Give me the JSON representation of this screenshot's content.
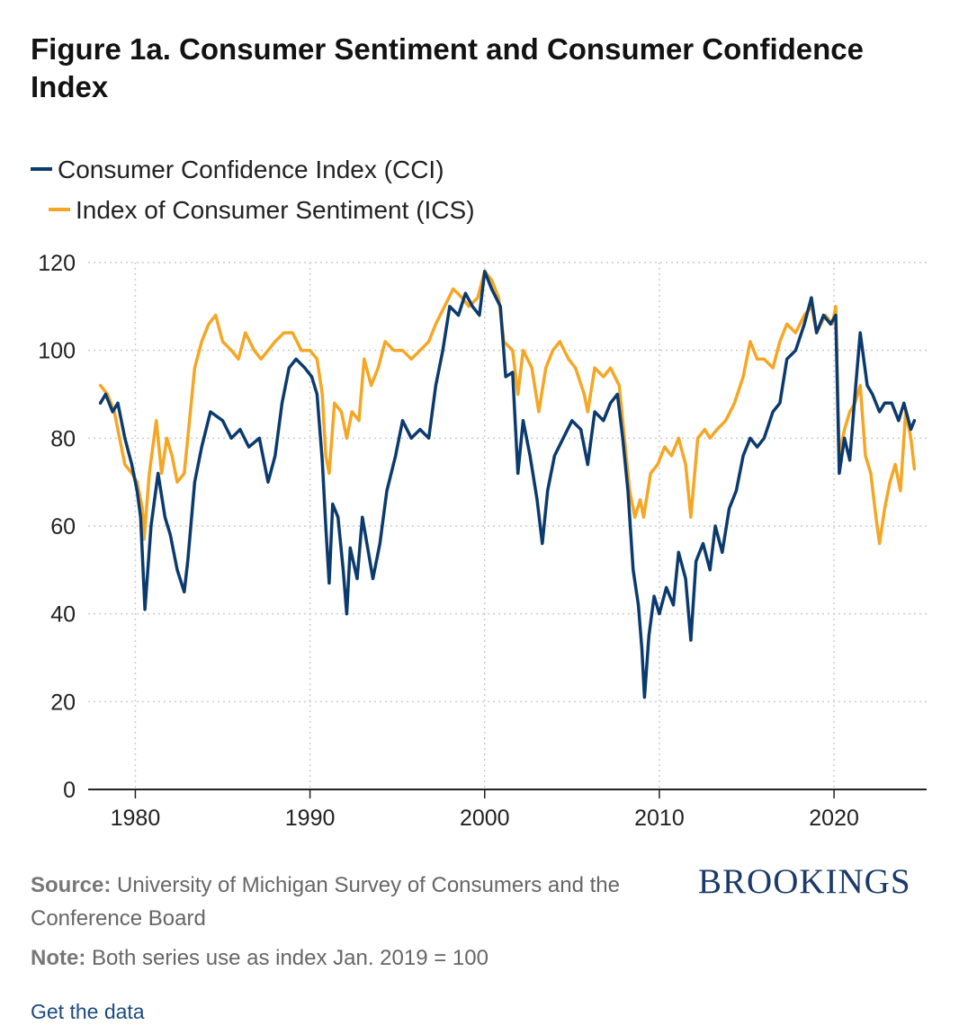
{
  "header": {
    "title": "Figure 1a. Consumer Sentiment and Consumer Confidence Index"
  },
  "colors": {
    "cci": "#0b3a6e",
    "ics": "#f5a623",
    "grid": "#cccccc",
    "axis": "#222222",
    "brand": "#1b3a6b"
  },
  "chart_data": {
    "type": "line",
    "title": "Figure 1a. Consumer Sentiment and Consumer Confidence Index",
    "xlabel": "",
    "ylabel": "",
    "xlim": [
      1977.3,
      2025.3
    ],
    "ylim": [
      0,
      120
    ],
    "x_ticks": [
      1980,
      1990,
      2000,
      2010,
      2020
    ],
    "y_ticks": [
      0,
      20,
      40,
      60,
      80,
      100,
      120
    ],
    "grid": true,
    "legend_position": "top",
    "series": [
      {
        "name": "Consumer Confidence Index (CCI)",
        "key": "cci",
        "points": [
          [
            1978.0,
            88
          ],
          [
            1978.3,
            90
          ],
          [
            1978.7,
            86
          ],
          [
            1979.0,
            88
          ],
          [
            1979.4,
            80
          ],
          [
            1979.8,
            74
          ],
          [
            1980.1,
            68
          ],
          [
            1980.3,
            62
          ],
          [
            1980.55,
            41
          ],
          [
            1980.9,
            60
          ],
          [
            1981.3,
            72
          ],
          [
            1981.7,
            62
          ],
          [
            1982.0,
            58
          ],
          [
            1982.4,
            50
          ],
          [
            1982.8,
            45
          ],
          [
            1983.0,
            52
          ],
          [
            1983.4,
            70
          ],
          [
            1983.8,
            78
          ],
          [
            1984.3,
            86
          ],
          [
            1985.0,
            84
          ],
          [
            1985.5,
            80
          ],
          [
            1986.0,
            82
          ],
          [
            1986.5,
            78
          ],
          [
            1987.1,
            80
          ],
          [
            1987.6,
            70
          ],
          [
            1988.0,
            76
          ],
          [
            1988.4,
            88
          ],
          [
            1988.8,
            96
          ],
          [
            1989.2,
            98
          ],
          [
            1989.7,
            96
          ],
          [
            1990.1,
            94
          ],
          [
            1990.4,
            90
          ],
          [
            1990.7,
            75
          ],
          [
            1990.9,
            60
          ],
          [
            1991.1,
            47
          ],
          [
            1991.3,
            65
          ],
          [
            1991.6,
            62
          ],
          [
            1991.9,
            50
          ],
          [
            1992.1,
            40
          ],
          [
            1992.3,
            55
          ],
          [
            1992.7,
            48
          ],
          [
            1993.0,
            62
          ],
          [
            1993.3,
            55
          ],
          [
            1993.6,
            48
          ],
          [
            1994.0,
            56
          ],
          [
            1994.4,
            68
          ],
          [
            1994.9,
            76
          ],
          [
            1995.3,
            84
          ],
          [
            1995.8,
            80
          ],
          [
            1996.3,
            82
          ],
          [
            1996.8,
            80
          ],
          [
            1997.2,
            92
          ],
          [
            1997.6,
            100
          ],
          [
            1998.0,
            110
          ],
          [
            1998.5,
            108
          ],
          [
            1998.9,
            113
          ],
          [
            1999.3,
            110
          ],
          [
            1999.7,
            108
          ],
          [
            2000.0,
            118
          ],
          [
            2000.4,
            114
          ],
          [
            2000.9,
            110
          ],
          [
            2001.2,
            94
          ],
          [
            2001.6,
            95
          ],
          [
            2001.9,
            72
          ],
          [
            2002.2,
            84
          ],
          [
            2002.6,
            76
          ],
          [
            2003.0,
            66
          ],
          [
            2003.3,
            56
          ],
          [
            2003.6,
            68
          ],
          [
            2004.0,
            76
          ],
          [
            2004.5,
            80
          ],
          [
            2005.0,
            84
          ],
          [
            2005.5,
            82
          ],
          [
            2005.9,
            74
          ],
          [
            2006.3,
            86
          ],
          [
            2006.8,
            84
          ],
          [
            2007.2,
            88
          ],
          [
            2007.6,
            90
          ],
          [
            2007.9,
            80
          ],
          [
            2008.2,
            68
          ],
          [
            2008.5,
            50
          ],
          [
            2008.8,
            42
          ],
          [
            2009.0,
            32
          ],
          [
            2009.15,
            21
          ],
          [
            2009.4,
            35
          ],
          [
            2009.7,
            44
          ],
          [
            2010.0,
            40
          ],
          [
            2010.4,
            46
          ],
          [
            2010.8,
            42
          ],
          [
            2011.1,
            54
          ],
          [
            2011.5,
            48
          ],
          [
            2011.8,
            34
          ],
          [
            2012.1,
            52
          ],
          [
            2012.5,
            56
          ],
          [
            2012.9,
            50
          ],
          [
            2013.2,
            60
          ],
          [
            2013.6,
            54
          ],
          [
            2014.0,
            64
          ],
          [
            2014.4,
            68
          ],
          [
            2014.8,
            76
          ],
          [
            2015.2,
            80
          ],
          [
            2015.6,
            78
          ],
          [
            2016.0,
            80
          ],
          [
            2016.5,
            86
          ],
          [
            2016.9,
            88
          ],
          [
            2017.3,
            98
          ],
          [
            2017.8,
            100
          ],
          [
            2018.3,
            106
          ],
          [
            2018.7,
            112
          ],
          [
            2019.0,
            104
          ],
          [
            2019.4,
            108
          ],
          [
            2019.8,
            106
          ],
          [
            2020.1,
            108
          ],
          [
            2020.3,
            72
          ],
          [
            2020.6,
            80
          ],
          [
            2020.9,
            75
          ],
          [
            2021.2,
            90
          ],
          [
            2021.5,
            104
          ],
          [
            2021.9,
            92
          ],
          [
            2022.2,
            90
          ],
          [
            2022.6,
            86
          ],
          [
            2022.9,
            88
          ],
          [
            2023.3,
            88
          ],
          [
            2023.7,
            84
          ],
          [
            2024.0,
            88
          ],
          [
            2024.4,
            82
          ],
          [
            2024.6,
            84
          ]
        ]
      },
      {
        "name": "Index of Consumer Sentiment (ICS)",
        "key": "ics",
        "points": [
          [
            1978.0,
            92
          ],
          [
            1978.4,
            90
          ],
          [
            1978.8,
            86
          ],
          [
            1979.1,
            80
          ],
          [
            1979.4,
            74
          ],
          [
            1979.8,
            72
          ],
          [
            1980.1,
            70
          ],
          [
            1980.4,
            64
          ],
          [
            1980.5,
            57
          ],
          [
            1980.8,
            72
          ],
          [
            1981.2,
            84
          ],
          [
            1981.5,
            72
          ],
          [
            1981.8,
            80
          ],
          [
            1982.1,
            76
          ],
          [
            1982.4,
            70
          ],
          [
            1982.8,
            72
          ],
          [
            1983.0,
            80
          ],
          [
            1983.4,
            96
          ],
          [
            1983.8,
            102
          ],
          [
            1984.2,
            106
          ],
          [
            1984.6,
            108
          ],
          [
            1985.0,
            102
          ],
          [
            1985.5,
            100
          ],
          [
            1985.9,
            98
          ],
          [
            1986.3,
            104
          ],
          [
            1986.8,
            100
          ],
          [
            1987.2,
            98
          ],
          [
            1987.6,
            100
          ],
          [
            1988.0,
            102
          ],
          [
            1988.5,
            104
          ],
          [
            1989.0,
            104
          ],
          [
            1989.5,
            100
          ],
          [
            1990.0,
            100
          ],
          [
            1990.4,
            98
          ],
          [
            1990.7,
            90
          ],
          [
            1990.9,
            76
          ],
          [
            1991.1,
            72
          ],
          [
            1991.4,
            88
          ],
          [
            1991.8,
            86
          ],
          [
            1992.1,
            80
          ],
          [
            1992.4,
            86
          ],
          [
            1992.8,
            84
          ],
          [
            1993.1,
            98
          ],
          [
            1993.5,
            92
          ],
          [
            1993.9,
            96
          ],
          [
            1994.3,
            102
          ],
          [
            1994.8,
            100
          ],
          [
            1995.3,
            100
          ],
          [
            1995.8,
            98
          ],
          [
            1996.3,
            100
          ],
          [
            1996.8,
            102
          ],
          [
            1997.2,
            106
          ],
          [
            1997.7,
            110
          ],
          [
            1998.2,
            114
          ],
          [
            1998.7,
            112
          ],
          [
            1999.1,
            110
          ],
          [
            1999.6,
            112
          ],
          [
            2000.0,
            118
          ],
          [
            2000.4,
            116
          ],
          [
            2000.8,
            112
          ],
          [
            2001.1,
            102
          ],
          [
            2001.6,
            100
          ],
          [
            2001.9,
            90
          ],
          [
            2002.2,
            100
          ],
          [
            2002.7,
            96
          ],
          [
            2003.1,
            86
          ],
          [
            2003.5,
            96
          ],
          [
            2003.9,
            100
          ],
          [
            2004.3,
            102
          ],
          [
            2004.8,
            98
          ],
          [
            2005.2,
            96
          ],
          [
            2005.7,
            90
          ],
          [
            2005.9,
            86
          ],
          [
            2006.3,
            96
          ],
          [
            2006.8,
            94
          ],
          [
            2007.2,
            96
          ],
          [
            2007.7,
            92
          ],
          [
            2008.0,
            80
          ],
          [
            2008.3,
            68
          ],
          [
            2008.6,
            62
          ],
          [
            2008.9,
            66
          ],
          [
            2009.1,
            62
          ],
          [
            2009.5,
            72
          ],
          [
            2009.9,
            74
          ],
          [
            2010.3,
            78
          ],
          [
            2010.7,
            76
          ],
          [
            2011.1,
            80
          ],
          [
            2011.5,
            74
          ],
          [
            2011.8,
            62
          ],
          [
            2012.2,
            80
          ],
          [
            2012.6,
            82
          ],
          [
            2012.9,
            80
          ],
          [
            2013.3,
            82
          ],
          [
            2013.8,
            84
          ],
          [
            2014.3,
            88
          ],
          [
            2014.8,
            94
          ],
          [
            2015.2,
            102
          ],
          [
            2015.6,
            98
          ],
          [
            2016.0,
            98
          ],
          [
            2016.5,
            96
          ],
          [
            2016.9,
            102
          ],
          [
            2017.3,
            106
          ],
          [
            2017.8,
            104
          ],
          [
            2018.3,
            108
          ],
          [
            2018.7,
            110
          ],
          [
            2019.0,
            104
          ],
          [
            2019.5,
            108
          ],
          [
            2019.9,
            106
          ],
          [
            2020.1,
            110
          ],
          [
            2020.3,
            76
          ],
          [
            2020.6,
            82
          ],
          [
            2020.9,
            86
          ],
          [
            2021.2,
            88
          ],
          [
            2021.5,
            92
          ],
          [
            2021.8,
            76
          ],
          [
            2022.1,
            72
          ],
          [
            2022.4,
            62
          ],
          [
            2022.6,
            56
          ],
          [
            2022.9,
            64
          ],
          [
            2023.2,
            70
          ],
          [
            2023.5,
            74
          ],
          [
            2023.8,
            68
          ],
          [
            2024.1,
            86
          ],
          [
            2024.4,
            80
          ],
          [
            2024.6,
            73
          ]
        ]
      }
    ]
  },
  "legend": {
    "items": [
      {
        "label": "Consumer Confidence Index (CCI)",
        "key": "cci"
      },
      {
        "label": "Index of Consumer Sentiment (ICS)",
        "key": "ics"
      }
    ]
  },
  "footer": {
    "source_label": "Source:",
    "source_text": "University of Michigan Survey of Consumers and the Conference Board",
    "note_label": "Note:",
    "note_text": "Both series use as index Jan. 2019 = 100",
    "brand": "BROOKINGS",
    "get_data": "Get the data"
  }
}
